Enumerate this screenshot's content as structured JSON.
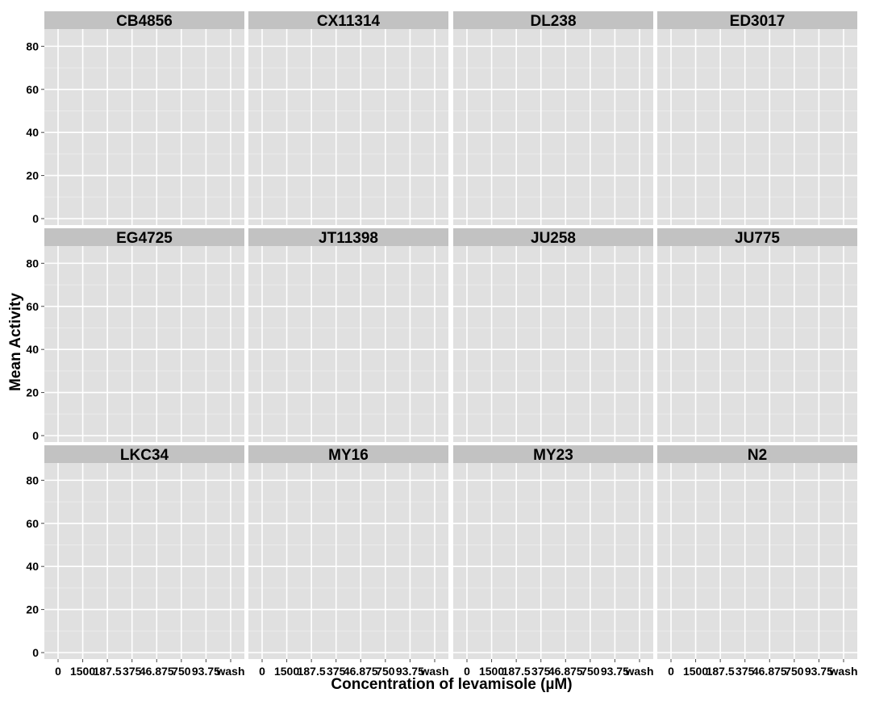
{
  "chart_data": {
    "type": "scatter",
    "facet_layout": {
      "ncol": 4,
      "nrow": 3
    },
    "facets": [
      {
        "label": "CB4856"
      },
      {
        "label": "CX11314"
      },
      {
        "label": "DL238"
      },
      {
        "label": "ED3017"
      },
      {
        "label": "EG4725"
      },
      {
        "label": "JT11398"
      },
      {
        "label": "JU258"
      },
      {
        "label": "JU775"
      },
      {
        "label": "LKC34"
      },
      {
        "label": "MY16"
      },
      {
        "label": "MY23"
      },
      {
        "label": "N2"
      }
    ],
    "categories": [
      "0",
      "1500",
      "187.5",
      "375",
      "46.875",
      "750",
      "93.75",
      "wash"
    ],
    "y_ticks": [
      0,
      20,
      40,
      60,
      80
    ],
    "ylim": [
      -3,
      88
    ],
    "xlabel": "Concentration of levamisole (µM)",
    "ylabel": "Mean Activity",
    "grid": true,
    "series": [],
    "colors": {
      "panel_bg": "#e0e0e0",
      "strip_bg": "#c2c2c2",
      "grid_major": "#ffffff",
      "grid_minor": "#ebebeb",
      "text": "#000000"
    }
  }
}
